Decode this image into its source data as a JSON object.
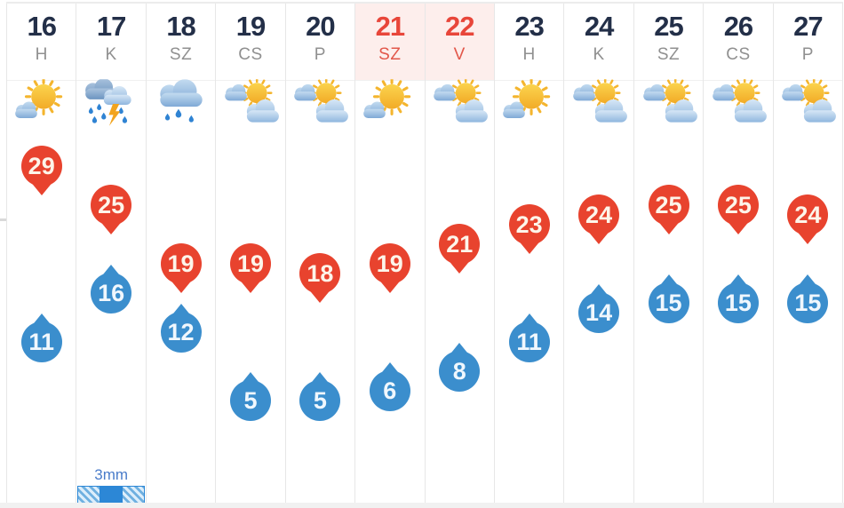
{
  "forecast": {
    "columns": [
      {
        "date": "16",
        "day": "H",
        "weekend": false,
        "icon": "mostly-sunny",
        "high": 29,
        "low": 11,
        "precip": null
      },
      {
        "date": "17",
        "day": "K",
        "weekend": false,
        "icon": "rain-thunder",
        "high": 25,
        "low": 16,
        "precip": "3mm"
      },
      {
        "date": "18",
        "day": "SZ",
        "weekend": false,
        "icon": "rain",
        "high": 19,
        "low": 12,
        "precip": null
      },
      {
        "date": "19",
        "day": "CS",
        "weekend": false,
        "icon": "partly-cloudy",
        "high": 19,
        "low": 5,
        "precip": null
      },
      {
        "date": "20",
        "day": "P",
        "weekend": false,
        "icon": "partly-cloudy",
        "high": 18,
        "low": 5,
        "precip": null
      },
      {
        "date": "21",
        "day": "SZ",
        "weekend": true,
        "icon": "mostly-sunny",
        "high": 19,
        "low": 6,
        "precip": null
      },
      {
        "date": "22",
        "day": "V",
        "weekend": true,
        "icon": "partly-cloudy",
        "high": 21,
        "low": 8,
        "precip": null
      },
      {
        "date": "23",
        "day": "H",
        "weekend": false,
        "icon": "mostly-sunny",
        "high": 23,
        "low": 11,
        "precip": null
      },
      {
        "date": "24",
        "day": "K",
        "weekend": false,
        "icon": "partly-cloudy",
        "high": 24,
        "low": 14,
        "precip": null
      },
      {
        "date": "25",
        "day": "SZ",
        "weekend": false,
        "icon": "partly-cloudy",
        "high": 25,
        "low": 15,
        "precip": null
      },
      {
        "date": "26",
        "day": "CS",
        "weekend": false,
        "icon": "partly-cloudy",
        "high": 25,
        "low": 15,
        "precip": null
      },
      {
        "date": "27",
        "day": "P",
        "weekend": false,
        "icon": "partly-cloudy",
        "high": 24,
        "low": 15,
        "precip": null
      }
    ]
  },
  "icons_legend": {
    "mostly-sunny": "sun with small cloud",
    "rain-thunder": "two clouds with raindrops and lightning",
    "rain": "cloud with raindrops",
    "partly-cloudy": "sun behind two clouds"
  },
  "colors": {
    "high_marker": "#e8432e",
    "low_marker": "#3b8ecd",
    "marker_text": "#fdf5ea",
    "date_text": "#232f48",
    "weekday_text": "#909090",
    "weekend_text": "#e8463a",
    "weekend_header_bg": "#fdeeec",
    "precip_text": "#4a7cca",
    "precip_bar": "#2c87d6",
    "grid_border": "#e7e7e7"
  }
}
